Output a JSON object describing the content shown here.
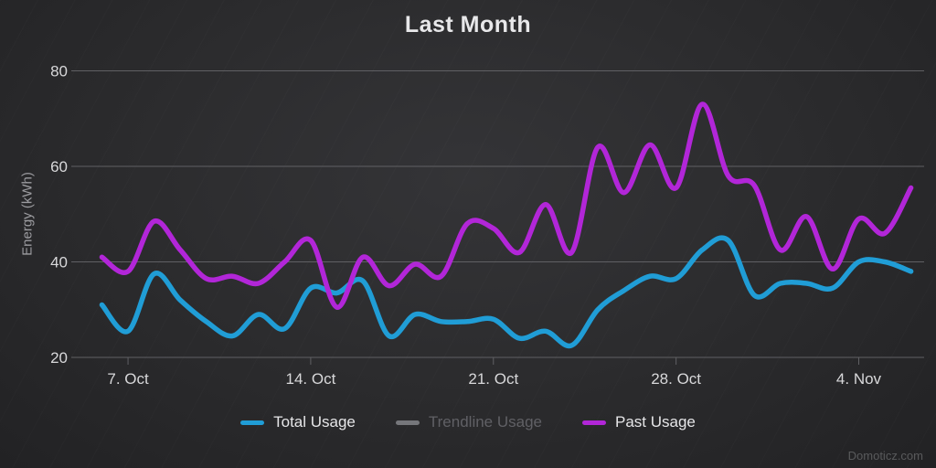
{
  "title": "Last Month",
  "watermark": "Domoticz.com",
  "y_axis": {
    "title": "Energy (kWh)"
  },
  "legend": [
    {
      "label": "Total Usage",
      "color": "#209DD6",
      "enabled": true
    },
    {
      "label": "Trendline Usage",
      "color": "#76777b",
      "enabled": false
    },
    {
      "label": "Past Usage",
      "color": "#B226D8",
      "enabled": true
    }
  ],
  "colors": {
    "background_center": "#343437",
    "background_edge": "#222224",
    "gridline": "#606064",
    "axis_label": "#d8d8da",
    "axis_title": "#9c9ca0",
    "title": "#e8e8ea",
    "legend_text": "#e6e6e8",
    "legend_text_disabled": "#606065",
    "total_usage_line": "#209DD6",
    "past_usage_line": "#B226D8",
    "watermark": "#595a5c"
  },
  "chart_data": {
    "type": "line",
    "title": "Last Month",
    "xlabel": "",
    "ylabel": "Energy (kWh)",
    "ylim": [
      20,
      80
    ],
    "yticks": [
      20,
      40,
      60,
      80
    ],
    "ytick_labels": [
      "20",
      "40",
      "60",
      "80"
    ],
    "xtick_labels": [
      "7. Oct",
      "14. Oct",
      "21. Oct",
      "28. Oct",
      "4. Nov"
    ],
    "xtick_indices": [
      1,
      8,
      15,
      22,
      29
    ],
    "grid": true,
    "legend_position": "bottom",
    "x_dates": [
      "6 Oct",
      "7 Oct",
      "8 Oct",
      "9 Oct",
      "10 Oct",
      "11 Oct",
      "12 Oct",
      "13 Oct",
      "14 Oct",
      "15 Oct",
      "16 Oct",
      "17 Oct",
      "18 Oct",
      "19 Oct",
      "20 Oct",
      "21 Oct",
      "22 Oct",
      "23 Oct",
      "24 Oct",
      "25 Oct",
      "26 Oct",
      "27 Oct",
      "28 Oct",
      "29 Oct",
      "30 Oct",
      "31 Oct",
      "1 Nov",
      "2 Nov",
      "3 Nov",
      "4 Nov",
      "5 Nov",
      "6 Nov"
    ],
    "series": [
      {
        "name": "Total Usage",
        "color": "#209DD6",
        "visible": true,
        "values": [
          31,
          25.5,
          37.5,
          32,
          27.5,
          24.5,
          29,
          26,
          34.5,
          33.5,
          36,
          24.5,
          29,
          27.5,
          27.5,
          28,
          24,
          25.5,
          22.5,
          30,
          34,
          37,
          36.5,
          42.5,
          44.5,
          33,
          35.5,
          35.5,
          34.5,
          40,
          40,
          38
        ]
      },
      {
        "name": "Trendline Usage",
        "color": "#76777b",
        "visible": false,
        "values": []
      },
      {
        "name": "Past Usage",
        "color": "#B226D8",
        "visible": true,
        "values": [
          41,
          38,
          48.5,
          42.5,
          36.5,
          37,
          35.5,
          40,
          44.5,
          30.5,
          41,
          35,
          39.5,
          37,
          48,
          47,
          42,
          52,
          42,
          64,
          54.5,
          64.5,
          55.5,
          73,
          58,
          56,
          42.5,
          49.5,
          38.5,
          49,
          46,
          55.5
        ]
      }
    ]
  }
}
